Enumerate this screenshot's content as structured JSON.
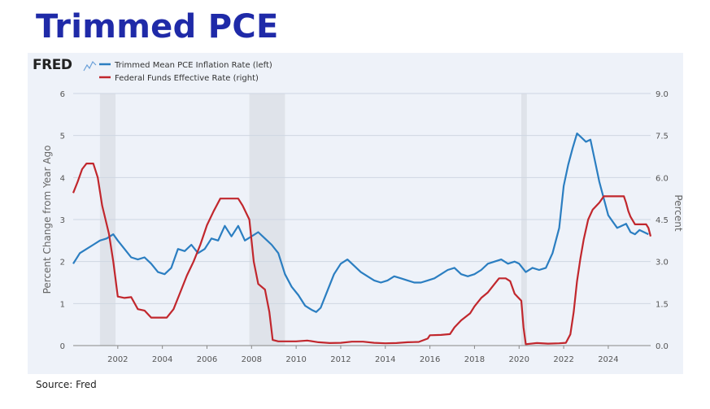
{
  "slide": {
    "title": "Trimmed PCE",
    "source": "Source: Fred"
  },
  "brand": {
    "logo_text": "FRED"
  },
  "colors": {
    "title": "#1f2aa8",
    "series_blue": "#2b7ec1",
    "series_red": "#c1272d",
    "recession": "#dfe3ea",
    "panel": "#eef2f9"
  },
  "chart_data": {
    "type": "line",
    "title": "",
    "legend": [
      "Trimmed Mean PCE Inflation Rate (left)",
      "Federal Funds Effective Rate (right)"
    ],
    "legend_placement": "top-left",
    "ylabel_left": "Percent Change from Year Ago",
    "ylabel_right": "Percent",
    "xlim": [
      2000.0,
      2025.9
    ],
    "ylim_left": [
      0,
      6
    ],
    "ylim_right": [
      0,
      9
    ],
    "left_ticks": [
      "0",
      "1",
      "2",
      "3",
      "4",
      "5",
      "6"
    ],
    "right_ticks": [
      "0.0",
      "1.5",
      "3.0",
      "4.5",
      "6.0",
      "7.5",
      "9.0"
    ],
    "x_ticks": [
      "2002",
      "2004",
      "2006",
      "2008",
      "2010",
      "2012",
      "2014",
      "2016",
      "2018",
      "2020",
      "2022",
      "2024"
    ],
    "grid": "horizontal",
    "recessions": [
      [
        2001.2,
        2001.9
      ],
      [
        2007.9,
        2009.5
      ],
      [
        2020.1,
        2020.35
      ]
    ],
    "series": [
      {
        "name": "Trimmed Mean PCE Inflation Rate (left)",
        "axis": "left",
        "color": "#2b7ec1",
        "points": [
          [
            2000.0,
            1.95
          ],
          [
            2000.3,
            2.2
          ],
          [
            2000.6,
            2.3
          ],
          [
            2000.9,
            2.4
          ],
          [
            2001.2,
            2.5
          ],
          [
            2001.5,
            2.55
          ],
          [
            2001.8,
            2.65
          ],
          [
            2002.0,
            2.5
          ],
          [
            2002.3,
            2.3
          ],
          [
            2002.6,
            2.1
          ],
          [
            2002.9,
            2.05
          ],
          [
            2003.2,
            2.1
          ],
          [
            2003.5,
            1.95
          ],
          [
            2003.8,
            1.75
          ],
          [
            2004.1,
            1.7
          ],
          [
            2004.4,
            1.85
          ],
          [
            2004.7,
            2.3
          ],
          [
            2005.0,
            2.25
          ],
          [
            2005.3,
            2.4
          ],
          [
            2005.6,
            2.2
          ],
          [
            2005.9,
            2.3
          ],
          [
            2006.2,
            2.55
          ],
          [
            2006.5,
            2.5
          ],
          [
            2006.8,
            2.85
          ],
          [
            2007.1,
            2.6
          ],
          [
            2007.4,
            2.85
          ],
          [
            2007.7,
            2.5
          ],
          [
            2008.0,
            2.6
          ],
          [
            2008.3,
            2.7
          ],
          [
            2008.6,
            2.55
          ],
          [
            2008.9,
            2.4
          ],
          [
            2009.2,
            2.2
          ],
          [
            2009.5,
            1.7
          ],
          [
            2009.8,
            1.4
          ],
          [
            2010.1,
            1.2
          ],
          [
            2010.4,
            0.95
          ],
          [
            2010.7,
            0.85
          ],
          [
            2010.9,
            0.8
          ],
          [
            2011.1,
            0.9
          ],
          [
            2011.4,
            1.3
          ],
          [
            2011.7,
            1.7
          ],
          [
            2012.0,
            1.95
          ],
          [
            2012.3,
            2.05
          ],
          [
            2012.6,
            1.9
          ],
          [
            2012.9,
            1.75
          ],
          [
            2013.2,
            1.65
          ],
          [
            2013.5,
            1.55
          ],
          [
            2013.8,
            1.5
          ],
          [
            2014.1,
            1.55
          ],
          [
            2014.4,
            1.65
          ],
          [
            2014.7,
            1.6
          ],
          [
            2015.0,
            1.55
          ],
          [
            2015.3,
            1.5
          ],
          [
            2015.6,
            1.5
          ],
          [
            2015.9,
            1.55
          ],
          [
            2016.2,
            1.6
          ],
          [
            2016.5,
            1.7
          ],
          [
            2016.8,
            1.8
          ],
          [
            2017.1,
            1.85
          ],
          [
            2017.4,
            1.7
          ],
          [
            2017.7,
            1.65
          ],
          [
            2018.0,
            1.7
          ],
          [
            2018.3,
            1.8
          ],
          [
            2018.6,
            1.95
          ],
          [
            2018.9,
            2.0
          ],
          [
            2019.2,
            2.05
          ],
          [
            2019.5,
            1.95
          ],
          [
            2019.8,
            2.0
          ],
          [
            2020.0,
            1.95
          ],
          [
            2020.3,
            1.75
          ],
          [
            2020.6,
            1.85
          ],
          [
            2020.9,
            1.8
          ],
          [
            2021.2,
            1.85
          ],
          [
            2021.5,
            2.2
          ],
          [
            2021.8,
            2.8
          ],
          [
            2022.0,
            3.8
          ],
          [
            2022.2,
            4.3
          ],
          [
            2022.4,
            4.7
          ],
          [
            2022.6,
            5.05
          ],
          [
            2022.8,
            4.95
          ],
          [
            2023.0,
            4.85
          ],
          [
            2023.2,
            4.9
          ],
          [
            2023.4,
            4.4
          ],
          [
            2023.6,
            3.9
          ],
          [
            2023.8,
            3.5
          ],
          [
            2024.0,
            3.1
          ],
          [
            2024.2,
            2.95
          ],
          [
            2024.4,
            2.8
          ],
          [
            2024.6,
            2.85
          ],
          [
            2024.8,
            2.9
          ],
          [
            2025.0,
            2.7
          ],
          [
            2025.2,
            2.65
          ],
          [
            2025.4,
            2.75
          ],
          [
            2025.6,
            2.7
          ],
          [
            2025.8,
            2.65
          ]
        ]
      },
      {
        "name": "Federal Funds Effective Rate (right)",
        "axis": "right",
        "color": "#c1272d",
        "points": [
          [
            2000.0,
            5.45
          ],
          [
            2000.2,
            5.85
          ],
          [
            2000.4,
            6.3
          ],
          [
            2000.6,
            6.5
          ],
          [
            2000.9,
            6.5
          ],
          [
            2001.1,
            6.0
          ],
          [
            2001.3,
            5.0
          ],
          [
            2001.6,
            4.0
          ],
          [
            2001.8,
            3.0
          ],
          [
            2002.0,
            1.75
          ],
          [
            2002.3,
            1.7
          ],
          [
            2002.6,
            1.73
          ],
          [
            2002.9,
            1.3
          ],
          [
            2003.2,
            1.25
          ],
          [
            2003.5,
            1.0
          ],
          [
            2003.8,
            1.0
          ],
          [
            2004.2,
            1.0
          ],
          [
            2004.5,
            1.3
          ],
          [
            2004.8,
            1.9
          ],
          [
            2005.1,
            2.5
          ],
          [
            2005.4,
            3.0
          ],
          [
            2005.7,
            3.6
          ],
          [
            2006.0,
            4.3
          ],
          [
            2006.3,
            4.8
          ],
          [
            2006.6,
            5.25
          ],
          [
            2007.0,
            5.25
          ],
          [
            2007.4,
            5.25
          ],
          [
            2007.6,
            5.0
          ],
          [
            2007.9,
            4.5
          ],
          [
            2008.1,
            3.0
          ],
          [
            2008.3,
            2.2
          ],
          [
            2008.6,
            2.0
          ],
          [
            2008.8,
            1.2
          ],
          [
            2008.95,
            0.2
          ],
          [
            2009.2,
            0.15
          ],
          [
            2009.6,
            0.15
          ],
          [
            2010.0,
            0.15
          ],
          [
            2010.5,
            0.18
          ],
          [
            2011.0,
            0.12
          ],
          [
            2011.5,
            0.09
          ],
          [
            2012.0,
            0.1
          ],
          [
            2012.5,
            0.14
          ],
          [
            2013.0,
            0.14
          ],
          [
            2013.5,
            0.1
          ],
          [
            2014.0,
            0.08
          ],
          [
            2014.5,
            0.09
          ],
          [
            2015.0,
            0.12
          ],
          [
            2015.5,
            0.13
          ],
          [
            2015.9,
            0.25
          ],
          [
            2016.0,
            0.37
          ],
          [
            2016.5,
            0.38
          ],
          [
            2016.9,
            0.41
          ],
          [
            2017.1,
            0.65
          ],
          [
            2017.4,
            0.9
          ],
          [
            2017.8,
            1.15
          ],
          [
            2018.0,
            1.4
          ],
          [
            2018.3,
            1.7
          ],
          [
            2018.6,
            1.9
          ],
          [
            2018.9,
            2.2
          ],
          [
            2019.1,
            2.4
          ],
          [
            2019.4,
            2.4
          ],
          [
            2019.6,
            2.3
          ],
          [
            2019.8,
            1.85
          ],
          [
            2020.1,
            1.6
          ],
          [
            2020.2,
            0.65
          ],
          [
            2020.3,
            0.05
          ],
          [
            2020.8,
            0.09
          ],
          [
            2021.3,
            0.07
          ],
          [
            2021.8,
            0.08
          ],
          [
            2022.1,
            0.1
          ],
          [
            2022.3,
            0.4
          ],
          [
            2022.45,
            1.2
          ],
          [
            2022.6,
            2.3
          ],
          [
            2022.75,
            3.1
          ],
          [
            2022.9,
            3.8
          ],
          [
            2023.1,
            4.5
          ],
          [
            2023.3,
            4.85
          ],
          [
            2023.6,
            5.1
          ],
          [
            2023.8,
            5.33
          ],
          [
            2024.0,
            5.33
          ],
          [
            2024.4,
            5.33
          ],
          [
            2024.7,
            5.33
          ],
          [
            2024.8,
            5.1
          ],
          [
            2024.9,
            4.8
          ],
          [
            2025.0,
            4.6
          ],
          [
            2025.2,
            4.33
          ],
          [
            2025.5,
            4.33
          ],
          [
            2025.7,
            4.33
          ],
          [
            2025.8,
            4.2
          ],
          [
            2025.9,
            3.9
          ]
        ]
      }
    ]
  }
}
